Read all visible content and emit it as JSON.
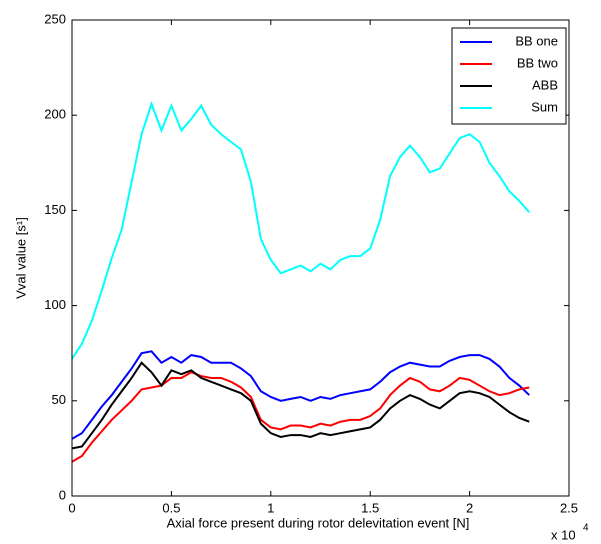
{
  "chart_data": {
    "type": "line",
    "xlabel": "Axial force present during rotor delevitation event [N]",
    "xlabel_multiplier": "x 10",
    "xlabel_multiplier_exponent": "4",
    "ylabel": "Vval value [s¹]",
    "xlim": [
      0,
      2.5
    ],
    "xticks": [
      0,
      0.5,
      1,
      1.5,
      2,
      2.5
    ],
    "ylim": [
      0,
      250
    ],
    "yticks": [
      0,
      50,
      100,
      150,
      200,
      250
    ],
    "legend": "top-right",
    "x": [
      0,
      0.05,
      0.1,
      0.15,
      0.2,
      0.25,
      0.3,
      0.35,
      0.4,
      0.45,
      0.5,
      0.55,
      0.6,
      0.65,
      0.7,
      0.75,
      0.8,
      0.85,
      0.9,
      0.95,
      1,
      1.05,
      1.1,
      1.15,
      1.2,
      1.25,
      1.3,
      1.35,
      1.4,
      1.45,
      1.5,
      1.55,
      1.6,
      1.65,
      1.7,
      1.75,
      1.8,
      1.85,
      1.9,
      1.95,
      2,
      2.05,
      2.1,
      2.15,
      2.2,
      2.25,
      2.3
    ],
    "series": [
      {
        "name": "BB one",
        "color": "#0000ff",
        "values": [
          30,
          33,
          40,
          47,
          53,
          60,
          67,
          75,
          76,
          70,
          73,
          70,
          74,
          73,
          70,
          70,
          70,
          67,
          63,
          55,
          52,
          50,
          51,
          52,
          50,
          52,
          51,
          53,
          54,
          55,
          56,
          60,
          65,
          68,
          70,
          69,
          68,
          68,
          71,
          73,
          74,
          74,
          72,
          68,
          62,
          58,
          53
        ]
      },
      {
        "name": "BB two",
        "color": "#ff0000",
        "values": [
          18,
          21,
          28,
          34,
          40,
          45,
          50,
          56,
          57,
          58,
          62,
          62,
          65,
          63,
          62,
          62,
          60,
          57,
          52,
          40,
          36,
          35,
          37,
          37,
          36,
          38,
          37,
          39,
          40,
          40,
          42,
          46,
          53,
          58,
          62,
          60,
          56,
          55,
          58,
          62,
          61,
          58,
          55,
          53,
          54,
          56,
          57
        ]
      },
      {
        "name": "ABB",
        "color": "#000000",
        "values": [
          25,
          26,
          33,
          40,
          48,
          55,
          62,
          70,
          65,
          58,
          66,
          64,
          66,
          62,
          60,
          58,
          56,
          54,
          50,
          38,
          33,
          31,
          32,
          32,
          31,
          33,
          32,
          33,
          34,
          35,
          36,
          40,
          46,
          50,
          53,
          51,
          48,
          46,
          50,
          54,
          55,
          54,
          52,
          48,
          44,
          41,
          39
        ]
      },
      {
        "name": "Sum",
        "color": "#00ffff",
        "values": [
          72,
          80,
          92,
          108,
          125,
          140,
          165,
          190,
          206,
          192,
          205,
          192,
          198,
          205,
          195,
          190,
          186,
          182,
          165,
          135,
          124,
          117,
          119,
          121,
          118,
          122,
          119,
          124,
          126,
          126,
          130,
          145,
          168,
          178,
          184,
          178,
          170,
          172,
          180,
          188,
          190,
          186,
          175,
          168,
          160,
          155,
          149
        ]
      }
    ]
  }
}
